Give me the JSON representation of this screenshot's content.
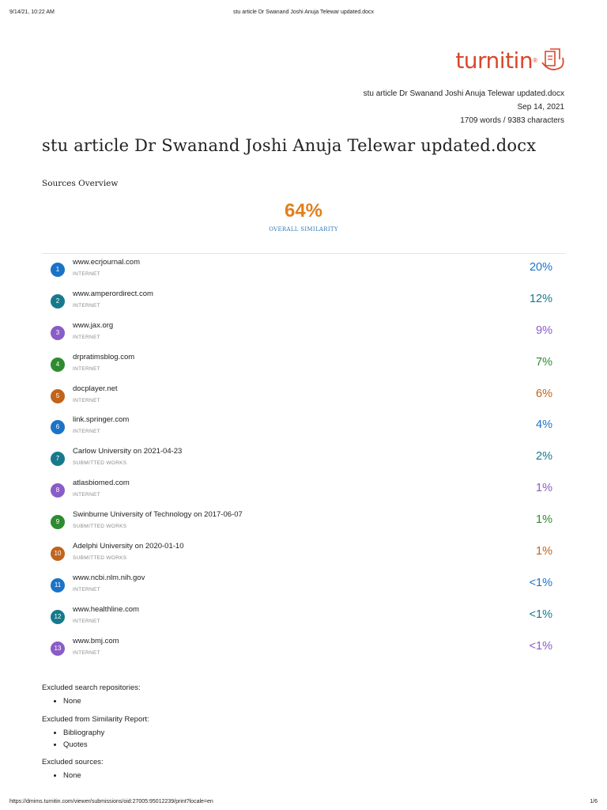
{
  "print_header": {
    "datetime": "9/14/21, 10:22 AM",
    "title": "stu article Dr Swanand Joshi Anuja Telewar updated.docx"
  },
  "logo": {
    "text": "turnitin",
    "registered": "®",
    "color": "#d9472b"
  },
  "meta": {
    "filename": "stu article Dr Swanand Joshi Anuja Telewar updated.docx",
    "date": "Sep 14, 2021",
    "counts": "1709 words / 9383 characters"
  },
  "doc_title": "stu article Dr Swanand Joshi Anuja Telewar updated.docx",
  "sources_overview_label": "Sources Overview",
  "overall": {
    "percent": "64%",
    "label": "OVERALL SIMILARITY",
    "color": "#e17f1c"
  },
  "sources": [
    {
      "num": "1",
      "name": "www.ecrjournal.com",
      "type": "INTERNET",
      "percent": "20%",
      "color": "#1b73c7"
    },
    {
      "num": "2",
      "name": "www.amperordirect.com",
      "type": "INTERNET",
      "percent": "12%",
      "color": "#177a8c"
    },
    {
      "num": "3",
      "name": "www.jax.org",
      "type": "INTERNET",
      "percent": "9%",
      "color": "#8a5cc8"
    },
    {
      "num": "4",
      "name": "drpratimsblog.com",
      "type": "INTERNET",
      "percent": "7%",
      "color": "#2e8b2e"
    },
    {
      "num": "5",
      "name": "docplayer.net",
      "type": "INTERNET",
      "percent": "6%",
      "color": "#c0641c"
    },
    {
      "num": "6",
      "name": "link.springer.com",
      "type": "INTERNET",
      "percent": "4%",
      "color": "#1b73c7"
    },
    {
      "num": "7",
      "name": "Carlow University on 2021-04-23",
      "type": "SUBMITTED WORKS",
      "percent": "2%",
      "color": "#177a8c"
    },
    {
      "num": "8",
      "name": "atlasbiomed.com",
      "type": "INTERNET",
      "percent": "1%",
      "color": "#8a5cc8"
    },
    {
      "num": "9",
      "name": "Swinburne University of Technology on 2017-06-07",
      "type": "SUBMITTED WORKS",
      "percent": "1%",
      "color": "#2e8b2e"
    },
    {
      "num": "10",
      "name": "Adelphi University on 2020-01-10",
      "type": "SUBMITTED WORKS",
      "percent": "1%",
      "color": "#c0641c"
    },
    {
      "num": "11",
      "name": "www.ncbi.nlm.nih.gov",
      "type": "INTERNET",
      "percent": "<1%",
      "color": "#1b73c7"
    },
    {
      "num": "12",
      "name": "www.healthline.com",
      "type": "INTERNET",
      "percent": "<1%",
      "color": "#177a8c"
    },
    {
      "num": "13",
      "name": "www.bmj.com",
      "type": "INTERNET",
      "percent": "<1%",
      "color": "#8a5cc8"
    }
  ],
  "exclusions": [
    {
      "heading": "Excluded search repositories:",
      "items": [
        "None"
      ]
    },
    {
      "heading": "Excluded from Similarity Report:",
      "items": [
        "Bibliography",
        "Quotes"
      ]
    },
    {
      "heading": "Excluded sources:",
      "items": [
        "None"
      ]
    }
  ],
  "print_footer": {
    "url": "https://dmims.turnitin.com/viewer/submissions/oid:27005:95012239/print?locale=en",
    "page": "1/6"
  }
}
